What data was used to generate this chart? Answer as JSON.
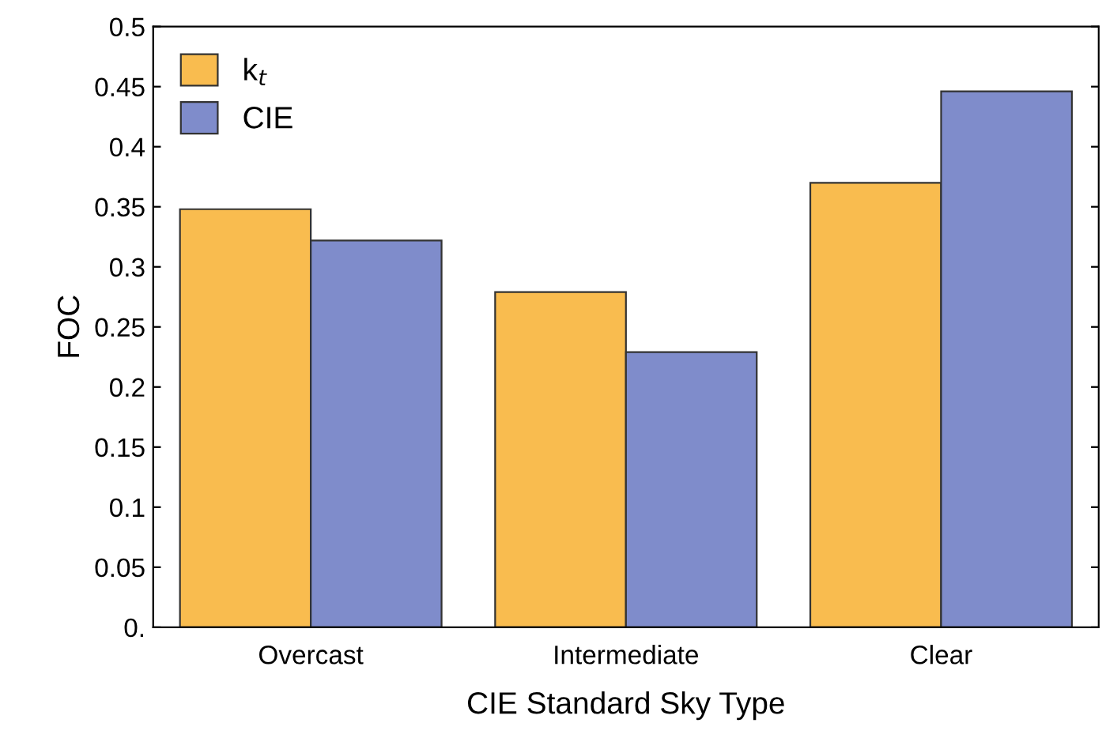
{
  "chart_data": {
    "type": "bar",
    "xlabel": "CIE Standard Sky Type",
    "ylabel": "FOC",
    "categories": [
      "Overcast",
      "Intermediate",
      "Clear"
    ],
    "series": [
      {
        "name": "k$_{t}$",
        "color": "#f9bc4f",
        "values": [
          0.348,
          0.279,
          0.37
        ]
      },
      {
        "name": "CIE",
        "color": "#7f8ccb",
        "values": [
          0.322,
          0.229,
          0.446
        ]
      }
    ],
    "ylim": [
      0,
      0.5
    ],
    "yticks": [
      {
        "value": 0,
        "label": "0."
      },
      0.05,
      0.1,
      0.15,
      0.2,
      0.25,
      0.3,
      0.35,
      0.4,
      0.45,
      0.5
    ],
    "grid": false,
    "legend": "top left"
  }
}
